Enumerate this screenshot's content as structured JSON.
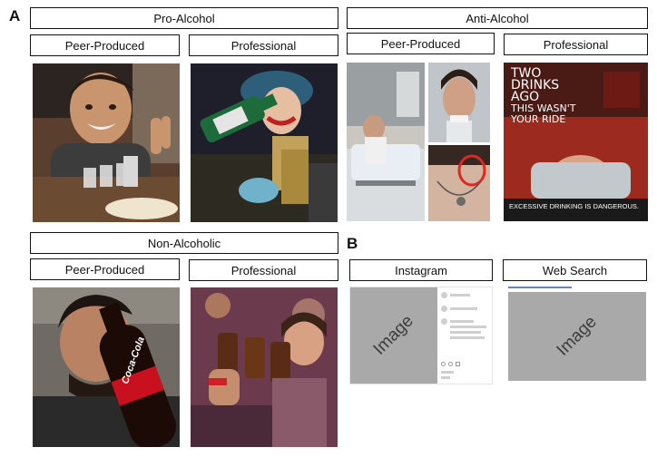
{
  "panels": {
    "a": "A",
    "b": "B"
  },
  "groups": {
    "pro_alcohol": "Pro-Alcohol",
    "anti_alcohol": "Anti-Alcohol",
    "non_alcoholic": "Non-Alcoholic"
  },
  "sub_labels": {
    "peer_produced": "Peer-Produced",
    "professional": "Professional"
  },
  "anti_professional_ad": {
    "headline_1": "TWO",
    "headline_2": "DRINKS",
    "headline_3": "AGO",
    "headline_4": "THIS WASN'T",
    "headline_5": "YOUR RIDE",
    "tagline": "EXCESSIVE DRINKING IS DANGEROUS."
  },
  "non_alcoholic_peer": {
    "bottle_text": "Coca-Cola"
  },
  "panel_b": {
    "instagram_label": "Instagram",
    "web_search_label": "Web Search",
    "image_placeholder": "Image"
  },
  "colors": {
    "border": "#111111",
    "placeholder_gray": "#a9a9a9"
  }
}
